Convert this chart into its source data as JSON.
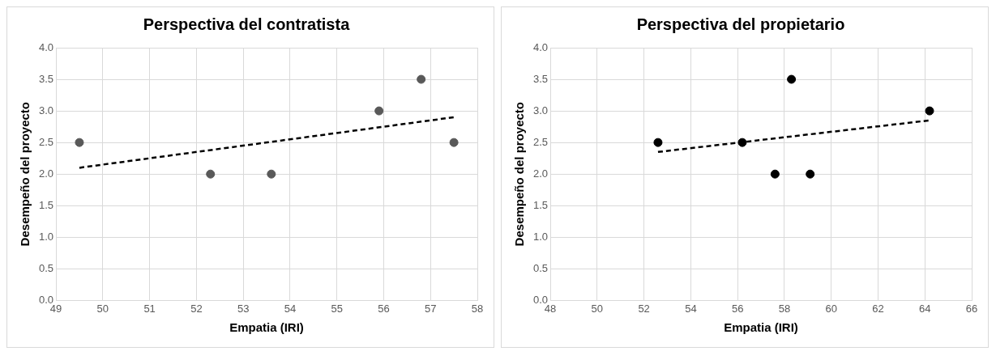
{
  "chart_data": [
    {
      "type": "scatter",
      "title": "Perspectiva del contratista",
      "xlabel": "Empatia (IRI)",
      "ylabel": "Desempeño del proyecto",
      "xlim": [
        49,
        58
      ],
      "xticks": [
        49,
        50,
        51,
        52,
        53,
        54,
        55,
        56,
        57,
        58
      ],
      "ylim": [
        0,
        4
      ],
      "yticks": [
        {
          "value": 0,
          "label": "0.0"
        },
        0.5,
        {
          "value": 1,
          "label": "1.0"
        },
        1.5,
        {
          "value": 2,
          "label": "2.0"
        },
        2.5,
        {
          "value": 3,
          "label": "3.0"
        },
        3.5,
        {
          "value": 4,
          "label": "4.0"
        }
      ],
      "grid": true,
      "legend": false,
      "marker": "circle",
      "series": [
        {
          "color": "#595959",
          "x": [
            49.5,
            52.3,
            53.6,
            55.9,
            56.8,
            57.5
          ],
          "values": [
            2.5,
            2.0,
            2.0,
            3.0,
            3.5,
            2.5
          ]
        },
        {
          "type": "line",
          "color": "#000000",
          "line_style": "dashed",
          "marker": "none",
          "x": [
            49.5,
            57.5
          ],
          "values": [
            2.1,
            2.9
          ]
        }
      ]
    },
    {
      "type": "scatter",
      "title": "Perspectiva del propietario",
      "xlabel": "Empatia (IRI)",
      "ylabel": "Desempeño del proyecto",
      "xlim": [
        48,
        66
      ],
      "xticks": [
        48,
        50,
        52,
        54,
        56,
        58,
        60,
        62,
        64,
        66
      ],
      "ylim": [
        0,
        4
      ],
      "yticks": [
        {
          "value": 0,
          "label": "0.0"
        },
        0.5,
        {
          "value": 1,
          "label": "1.0"
        },
        1.5,
        {
          "value": 2,
          "label": "2.0"
        },
        2.5,
        {
          "value": 3,
          "label": "3.0"
        },
        3.5,
        {
          "value": 4,
          "label": "4.0"
        }
      ],
      "grid": true,
      "legend": false,
      "marker": "circle",
      "series": [
        {
          "color": "#000000",
          "x": [
            52.6,
            56.2,
            57.6,
            58.3,
            59.1,
            64.2
          ],
          "values": [
            2.5,
            2.5,
            2.0,
            3.5,
            2.0,
            3.0
          ]
        },
        {
          "type": "line",
          "color": "#000000",
          "line_style": "dashed",
          "marker": "none",
          "x": [
            52.6,
            64.2
          ],
          "values": [
            2.35,
            2.85
          ]
        }
      ]
    }
  ]
}
